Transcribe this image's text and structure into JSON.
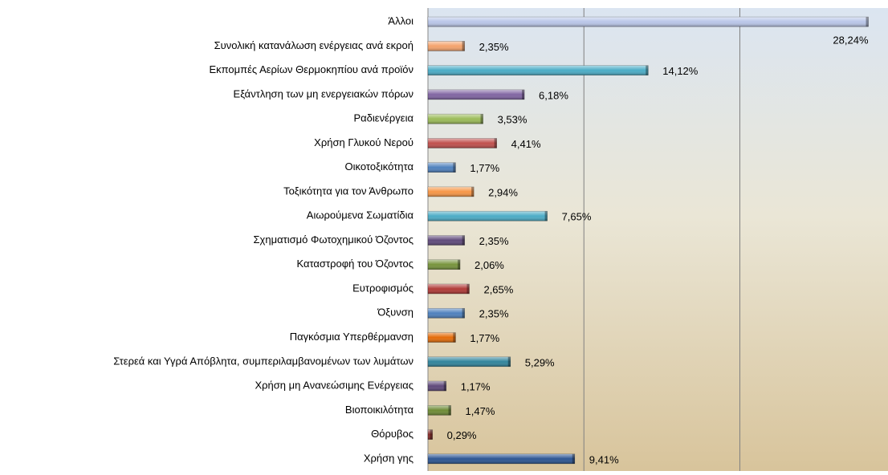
{
  "chart_data": {
    "type": "barh",
    "categories": [
      "Άλλοι",
      "Συνολική κατανάλωση ενέργειας ανά εκροή",
      "Εκπομπές Αερίων Θερμοκηπίου ανά προϊόν",
      "Εξάντληση των μη ενεργειακών πόρων",
      "Ραδιενέργεια",
      "Χρήση Γλυκού Νερού",
      "Οικοτοξικότητα",
      "Τοξικότητα για τον Άνθρωπο",
      "Αιωρούμενα Σωματίδια",
      "Σχηματισμό Φωτοχημικού Όζοντος",
      "Καταστροφή του Όζοντος",
      "Ευτροφισμός",
      "Όξυνση",
      "Παγκόσμια Υπερθέρμανση",
      "Στερεά και Υγρά Απόβλητα, συμπεριλαμβανομένων των λυμάτων",
      "Χρήση μη Ανανεώσιμης Ενέργειας",
      "Βιοποικιλότητα",
      "Θόρυβος",
      "Χρήση γης"
    ],
    "values": [
      28.24,
      2.35,
      14.12,
      6.18,
      3.53,
      4.41,
      1.77,
      2.94,
      7.65,
      2.35,
      2.06,
      2.65,
      2.35,
      1.77,
      5.29,
      1.17,
      1.47,
      0.29,
      9.41
    ],
    "value_labels": [
      "28,24%",
      "2,35%",
      "14,12%",
      "6,18%",
      "3,53%",
      "4,41%",
      "1,77%",
      "2,94%",
      "7,65%",
      "2,35%",
      "2,06%",
      "2,65%",
      "2,35%",
      "1,77%",
      "5,29%",
      "1,17%",
      "1,47%",
      "0,29%",
      "9,41%"
    ],
    "colors": [
      "#b9c6e8",
      "#f4a36c",
      "#4bacc6",
      "#8064a2",
      "#9bbb59",
      "#c0504d",
      "#4f81bd",
      "#f79646",
      "#4bacc6",
      "#604a7b",
      "#77933c",
      "#b03a37",
      "#4f81bd",
      "#e46c0a",
      "#31859c",
      "#5f497a",
      "#6e8b35",
      "#8a2d2a",
      "#2c5592"
    ],
    "xlim": [
      0,
      29.5
    ],
    "xticks": [
      10,
      20
    ],
    "grid": true
  }
}
